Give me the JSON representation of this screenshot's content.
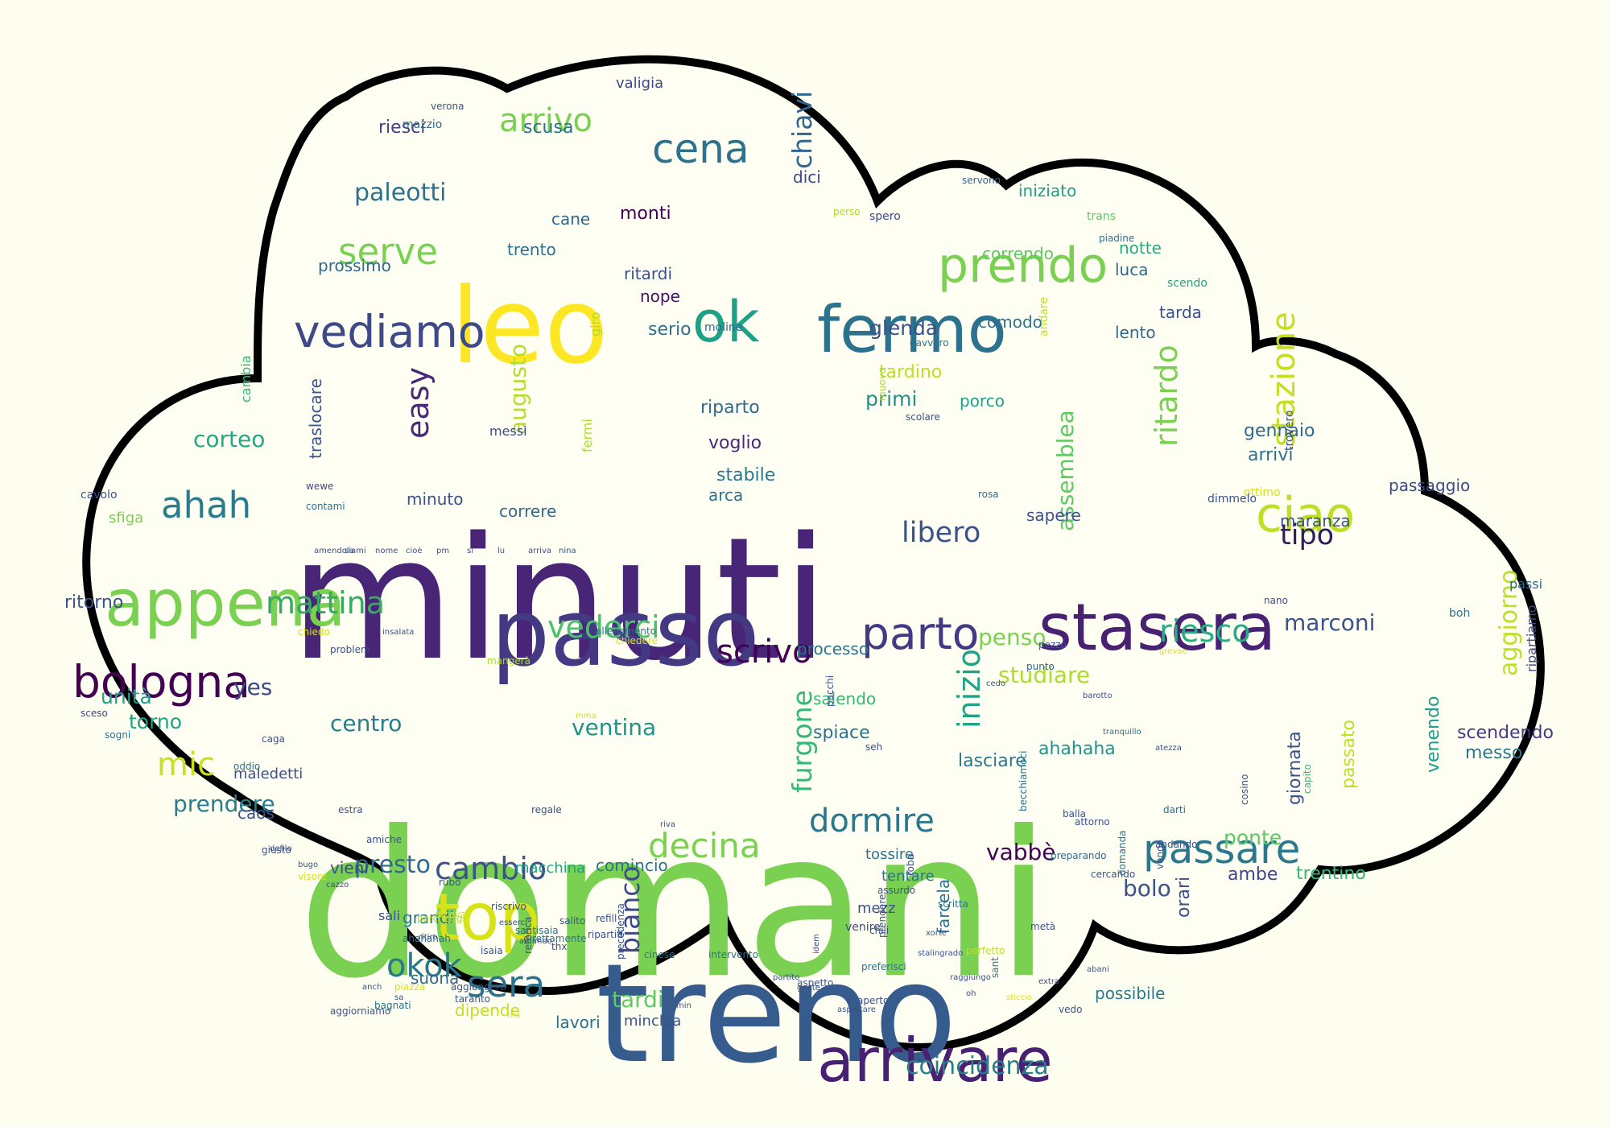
{
  "colors": {
    "background": "#fefef0",
    "cloud_fill": "#fefef2",
    "cloud_outline": "#000000"
  },
  "words": [
    {
      "text": "domani",
      "c": "#7ad151"
    },
    {
      "text": "minuti",
      "c": "#482576"
    },
    {
      "text": "treno",
      "c": "#365c8d"
    },
    {
      "text": "leo",
      "c": "#fde725"
    },
    {
      "text": "passo",
      "c": "#443983"
    },
    {
      "text": "stasera",
      "c": "#482173"
    },
    {
      "text": "appena",
      "c": "#7ad151"
    },
    {
      "text": "fermo",
      "c": "#2c728e"
    },
    {
      "text": "vediamo",
      "c": "#3e4989"
    },
    {
      "text": "arrivare",
      "c": "#482173"
    },
    {
      "text": "top",
      "c": "#d8e219"
    },
    {
      "text": "ok",
      "c": "#1fa187"
    },
    {
      "text": "prendo",
      "c": "#7ad151"
    },
    {
      "text": "ciao",
      "c": "#bddf26"
    },
    {
      "text": "parto",
      "c": "#443983"
    },
    {
      "text": "passare",
      "c": "#2a788e"
    },
    {
      "text": "bologna",
      "c": "#440154"
    },
    {
      "text": "cena",
      "c": "#2c728e"
    },
    {
      "text": "arrivo",
      "c": "#7ad151"
    },
    {
      "text": "serve",
      "c": "#7ad151"
    },
    {
      "text": "ahah",
      "c": "#287c8e"
    },
    {
      "text": "mattina",
      "c": "#38a963"
    },
    {
      "text": "vederci",
      "c": "#4ac16d"
    },
    {
      "text": "scrivo",
      "c": "#440154"
    },
    {
      "text": "riesco",
      "c": "#27ad81"
    },
    {
      "text": "cambio",
      "c": "#3b528b"
    },
    {
      "text": "decina",
      "c": "#7ad151"
    },
    {
      "text": "dormire",
      "c": "#2a788e"
    },
    {
      "text": "sera",
      "c": "#2c728e"
    },
    {
      "text": "okok",
      "c": "#2a788e"
    },
    {
      "text": "tipo",
      "c": "#2d1e63"
    },
    {
      "text": "paleotti",
      "c": "#2c728e"
    },
    {
      "text": "libero",
      "c": "#3b528b"
    },
    {
      "text": "easy",
      "c": "#482877"
    },
    {
      "text": "stazione",
      "c": "#c2df23"
    },
    {
      "text": "ritardo",
      "c": "#7ad151"
    },
    {
      "text": "chiavi",
      "c": "#31668e"
    },
    {
      "text": "augusto",
      "c": "#b5de2b"
    },
    {
      "text": "assemblea",
      "c": "#5ec962"
    },
    {
      "text": "aggiorno",
      "c": "#bddf26"
    },
    {
      "text": "inizio",
      "c": "#20a386"
    },
    {
      "text": "bianco",
      "c": "#3e4989"
    },
    {
      "text": "furgone",
      "c": "#35b779"
    },
    {
      "text": "mic",
      "c": "#c8e020"
    },
    {
      "text": "presto",
      "c": "#31688e"
    },
    {
      "text": "prendere",
      "c": "#287d8e"
    },
    {
      "text": "ventina",
      "c": "#21918c"
    },
    {
      "text": "centro",
      "c": "#287d8e"
    },
    {
      "text": "tardi",
      "c": "#5ec962"
    },
    {
      "text": "marconi",
      "c": "#3b528b"
    },
    {
      "text": "corteo",
      "c": "#22a884"
    },
    {
      "text": "yes",
      "c": "#3e4989"
    },
    {
      "text": "unità",
      "c": "#1f9e89"
    },
    {
      "text": "torno",
      "c": "#1fa187"
    },
    {
      "text": "glenda",
      "c": "#3b528b"
    },
    {
      "text": "primi",
      "c": "#21918c"
    },
    {
      "text": "vabbè",
      "c": "#440154"
    },
    {
      "text": "ponte",
      "c": "#5ec962"
    },
    {
      "text": "bolo",
      "c": "#3b528b"
    },
    {
      "text": "coincidenza",
      "c": "#277f8e"
    },
    {
      "text": "studiare",
      "c": "#addc30"
    },
    {
      "text": "penso",
      "c": "#7ad151"
    },
    {
      "text": "ritorno",
      "c": "#3b528b"
    },
    {
      "text": "gennaio",
      "c": "#31688e"
    },
    {
      "text": "arrivi",
      "c": "#2c728e"
    },
    {
      "text": "riparto",
      "c": "#31688e"
    },
    {
      "text": "serio",
      "c": "#2c728e"
    },
    {
      "text": "nope",
      "c": "#471063"
    },
    {
      "text": "ritardi",
      "c": "#3b528b"
    },
    {
      "text": "trento",
      "c": "#2c728e"
    },
    {
      "text": "prossimo",
      "c": "#31688e"
    },
    {
      "text": "monti",
      "c": "#440154"
    },
    {
      "text": "cane",
      "c": "#31688e"
    },
    {
      "text": "dici",
      "c": "#3e4989"
    },
    {
      "text": "riesci",
      "c": "#414487"
    },
    {
      "text": "scusa",
      "c": "#2c728e"
    },
    {
      "text": "valigia",
      "c": "#3e4989"
    },
    {
      "text": "iniziato",
      "c": "#1f9e89"
    },
    {
      "text": "correndo",
      "c": "#5ec962"
    },
    {
      "text": "notte",
      "c": "#27ad81"
    },
    {
      "text": "luca",
      "c": "#31688e"
    },
    {
      "text": "tarda",
      "c": "#3b528b"
    },
    {
      "text": "comodo",
      "c": "#2c728e"
    },
    {
      "text": "lento",
      "c": "#31688e"
    },
    {
      "text": "tardino",
      "c": "#bddf26"
    },
    {
      "text": "porco",
      "c": "#1f9e89"
    },
    {
      "text": "voglio",
      "c": "#482878"
    },
    {
      "text": "stabile",
      "c": "#2a788e"
    },
    {
      "text": "arca",
      "c": "#2c728e"
    },
    {
      "text": "minuto",
      "c": "#3b528b"
    },
    {
      "text": "correre",
      "c": "#31688e"
    },
    {
      "text": "sapere",
      "c": "#3b528b"
    },
    {
      "text": "passaggio",
      "c": "#3e4989"
    },
    {
      "text": "maranza",
      "c": "#3b528b"
    },
    {
      "text": "processo",
      "c": "#2c728e"
    },
    {
      "text": "salendo",
      "c": "#35b779"
    },
    {
      "text": "lasciare",
      "c": "#2a788e"
    },
    {
      "text": "spiace",
      "c": "#2c728e"
    },
    {
      "text": "ahahaha",
      "c": "#21918c"
    },
    {
      "text": "giornata",
      "c": "#3b528b"
    },
    {
      "text": "passato",
      "c": "#bddf26"
    },
    {
      "text": "venendo",
      "c": "#1f9e89"
    },
    {
      "text": "scendendo",
      "c": "#443a83"
    },
    {
      "text": "messo",
      "c": "#2a788e"
    },
    {
      "text": "ambe",
      "c": "#3e4989"
    },
    {
      "text": "trentino",
      "c": "#35b779"
    },
    {
      "text": "macchina",
      "c": "#1fa187"
    },
    {
      "text": "comincio",
      "c": "#2c728e"
    },
    {
      "text": "grandi",
      "c": "#2a788e"
    },
    {
      "text": "sali",
      "c": "#3b528b"
    },
    {
      "text": "suona",
      "c": "#31688e"
    },
    {
      "text": "dipende",
      "c": "#c2df23"
    },
    {
      "text": "lavori",
      "c": "#2c728e"
    },
    {
      "text": "minchia",
      "c": "#3b528b"
    },
    {
      "text": "vieni",
      "c": "#3e4989"
    },
    {
      "text": "tentare",
      "c": "#2c728e"
    },
    {
      "text": "tossire",
      "c": "#2c728e"
    },
    {
      "text": "mezz",
      "c": "#3b528b"
    },
    {
      "text": "farcela",
      "c": "#2c728e"
    },
    {
      "text": "caos",
      "c": "#3b528b"
    },
    {
      "text": "possibile",
      "c": "#2a788e"
    },
    {
      "text": "orari",
      "c": "#3b528b"
    },
    {
      "text": "passi",
      "c": "#31688e"
    },
    {
      "text": "boh",
      "c": "#2c728e"
    },
    {
      "text": "ripartiamo",
      "c": "#3e4989"
    },
    {
      "text": "maledetti",
      "c": "#3b528b"
    },
    {
      "text": "sfiga",
      "c": "#7ad151"
    },
    {
      "text": "traslocare",
      "c": "#3b528b"
    },
    {
      "text": "messi",
      "c": "#3e4989"
    },
    {
      "text": "giro",
      "c": "#addc30"
    },
    {
      "text": "fermi",
      "c": "#addc30"
    },
    {
      "text": "cambia",
      "c": "#35b779"
    },
    {
      "text": "cavolo",
      "c": "#3b528b"
    },
    {
      "text": "sceso",
      "c": "#3e4989"
    },
    {
      "text": "sogni",
      "c": "#2c728e"
    },
    {
      "text": "mazzio",
      "c": "#31688e"
    },
    {
      "text": "verona",
      "c": "#3b528b"
    },
    {
      "text": "spero",
      "c": "#3e4989"
    },
    {
      "text": "perso",
      "c": "#addc30"
    },
    {
      "text": "servono",
      "c": "#31688e"
    },
    {
      "text": "trans",
      "c": "#5ec962"
    },
    {
      "text": "piadine",
      "c": "#2c728e"
    },
    {
      "text": "scendo",
      "c": "#1fa187"
    },
    {
      "text": "davvero",
      "c": "#2c728e"
    },
    {
      "text": "andare",
      "c": "#c2df23"
    },
    {
      "text": "scolare",
      "c": "#3b528b"
    },
    {
      "text": "moline",
      "c": "#31688e"
    },
    {
      "text": "muovo",
      "c": "#addc30"
    },
    {
      "text": "ottimo",
      "c": "#d8e219"
    },
    {
      "text": "dimmelo",
      "c": "#3b528b"
    },
    {
      "text": "trovero",
      "c": "#3b528b"
    },
    {
      "text": "rosa",
      "c": "#2c728e"
    },
    {
      "text": "chiedere",
      "c": "#d8e219"
    },
    {
      "text": "allenamento",
      "c": "#2c728e"
    },
    {
      "text": "mangerà",
      "c": "#addc30"
    },
    {
      "text": "insalata",
      "c": "#3b528b"
    },
    {
      "text": "problem",
      "c": "#3b528b"
    },
    {
      "text": "chiedo",
      "c": "#d8e219"
    },
    {
      "text": "oddio",
      "c": "#2c728e"
    },
    {
      "text": "caga",
      "c": "#3b528b"
    },
    {
      "text": "wewe",
      "c": "#3e4989"
    },
    {
      "text": "contami",
      "c": "#2c728e"
    },
    {
      "text": "punto",
      "c": "#31688e"
    },
    {
      "text": "pezzo",
      "c": "#3b528b"
    },
    {
      "text": "pacchi",
      "c": "#3b528b"
    },
    {
      "text": "seh",
      "c": "#3b528b"
    },
    {
      "text": "darti",
      "c": "#2c728e"
    },
    {
      "text": "cosino",
      "c": "#3b528b"
    },
    {
      "text": "capito",
      "c": "#35b779"
    },
    {
      "text": "nano",
      "c": "#3e4989"
    },
    {
      "text": "andando",
      "c": "#3b528b"
    },
    {
      "text": "balla",
      "c": "#3b528b"
    },
    {
      "text": "becchiamoci",
      "c": "#2c728e"
    },
    {
      "text": "preparando",
      "c": "#31688e"
    },
    {
      "text": "cercando",
      "c": "#3b528b"
    },
    {
      "text": "roba",
      "c": "#3b528b"
    },
    {
      "text": "scritta",
      "c": "#2c728e"
    },
    {
      "text": "metà",
      "c": "#3b528b"
    },
    {
      "text": "attorno",
      "c": "#3b528b"
    },
    {
      "text": "vengo",
      "c": "#3b528b"
    },
    {
      "text": "domanda",
      "c": "#2c728e"
    },
    {
      "text": "chili",
      "c": "#3b528b"
    },
    {
      "text": "perfetto",
      "c": "#bddf26"
    },
    {
      "text": "preferisci",
      "c": "#2c728e"
    },
    {
      "text": "venire",
      "c": "#3e4989"
    },
    {
      "text": "cinese",
      "c": "#2c728e"
    },
    {
      "text": "ripartiti",
      "c": "#3b528b"
    },
    {
      "text": "refill",
      "c": "#3b528b"
    },
    {
      "text": "salito",
      "c": "#3b528b"
    },
    {
      "text": "direttamente",
      "c": "#2c728e"
    },
    {
      "text": "isaia",
      "c": "#3b528b"
    },
    {
      "text": "ahahahah",
      "c": "#2c728e"
    },
    {
      "text": "aggiungerti",
      "c": "#3b528b"
    },
    {
      "text": "bagnati",
      "c": "#2c728e"
    },
    {
      "text": "taranto",
      "c": "#3b528b"
    },
    {
      "text": "piazza",
      "c": "#d8e219"
    },
    {
      "text": "estra",
      "c": "#3b528b"
    },
    {
      "text": "santisaia",
      "c": "#2c728e"
    },
    {
      "text": "aggiorniamo",
      "c": "#3b528b"
    },
    {
      "text": "riscrivo",
      "c": "#3b528b"
    },
    {
      "text": "visore",
      "c": "#d8e219"
    },
    {
      "text": "giusto",
      "c": "#3b528b"
    },
    {
      "text": "rubo",
      "c": "#3b528b"
    },
    {
      "text": "parcheggi",
      "c": "#addc30"
    },
    {
      "text": "diceva",
      "c": "#d8e219"
    },
    {
      "text": "amiche",
      "c": "#3b528b"
    },
    {
      "text": "mma",
      "c": "#d8e219"
    },
    {
      "text": "retorica",
      "c": "#3b528b"
    },
    {
      "text": "precedenza",
      "c": "#3b528b"
    },
    {
      "text": "intervento",
      "c": "#2c728e"
    },
    {
      "text": "aperto",
      "c": "#3b528b"
    },
    {
      "text": "assurdo",
      "c": "#3b528b"
    },
    {
      "text": "prendere",
      "c": "#3b528b"
    },
    {
      "text": "sant",
      "c": "#2c728e"
    },
    {
      "text": "vedo",
      "c": "#3b528b"
    },
    {
      "text": "ritiro",
      "c": "#3b528b"
    },
    {
      "text": "regale",
      "c": "#3b528b"
    },
    {
      "text": "thx",
      "c": "#3b528b"
    },
    {
      "text": "idem",
      "c": "#3b528b"
    },
    {
      "text": "aspetto",
      "c": "#3b528b"
    },
    {
      "text": "riva",
      "c": "#3b528b"
    },
    {
      "text": "min",
      "c": "#3b528b"
    },
    {
      "text": "xorte",
      "c": "#3b528b"
    },
    {
      "text": "grevae",
      "c": "#d8e219"
    },
    {
      "text": "barotto",
      "c": "#3b528b"
    },
    {
      "text": "cedo",
      "c": "#3b528b"
    },
    {
      "text": "tranquillo",
      "c": "#2c728e"
    },
    {
      "text": "atezza",
      "c": "#3b528b"
    },
    {
      "text": "partito",
      "c": "#3b528b"
    },
    {
      "text": "gente",
      "c": "#3b528b"
    },
    {
      "text": "amando",
      "c": "#3b528b"
    },
    {
      "text": "esserci",
      "c": "#3b528b"
    },
    {
      "text": "sa",
      "c": "#3b528b"
    },
    {
      "text": "anch",
      "c": "#3b528b"
    },
    {
      "text": "tea",
      "c": "#d8e219"
    },
    {
      "text": "defilo",
      "c": "#3b528b"
    },
    {
      "text": "bugo",
      "c": "#3b528b"
    },
    {
      "text": "cazzo",
      "c": "#3b528b"
    },
    {
      "text": "aspettare",
      "c": "#3b528b"
    },
    {
      "text": "stalingrado",
      "c": "#3b528b"
    },
    {
      "text": "raggiungo",
      "c": "#3b528b"
    },
    {
      "text": "oh",
      "c": "#3b528b"
    },
    {
      "text": "sticcio",
      "c": "#d8e219"
    },
    {
      "text": "extra",
      "c": "#3b528b"
    },
    {
      "text": "abani",
      "c": "#3b528b"
    },
    {
      "text": "amendola",
      "c": "#3b528b"
    },
    {
      "text": "siami",
      "c": "#3b528b"
    },
    {
      "text": "nome",
      "c": "#3b528b"
    },
    {
      "text": "cioè",
      "c": "#3b528b"
    },
    {
      "text": "pm",
      "c": "#3b528b"
    },
    {
      "text": "si",
      "c": "#3b528b"
    },
    {
      "text": "lu",
      "c": "#3b528b"
    },
    {
      "text": "arriva",
      "c": "#3b528b"
    },
    {
      "text": "nina",
      "c": "#3b528b"
    }
  ]
}
